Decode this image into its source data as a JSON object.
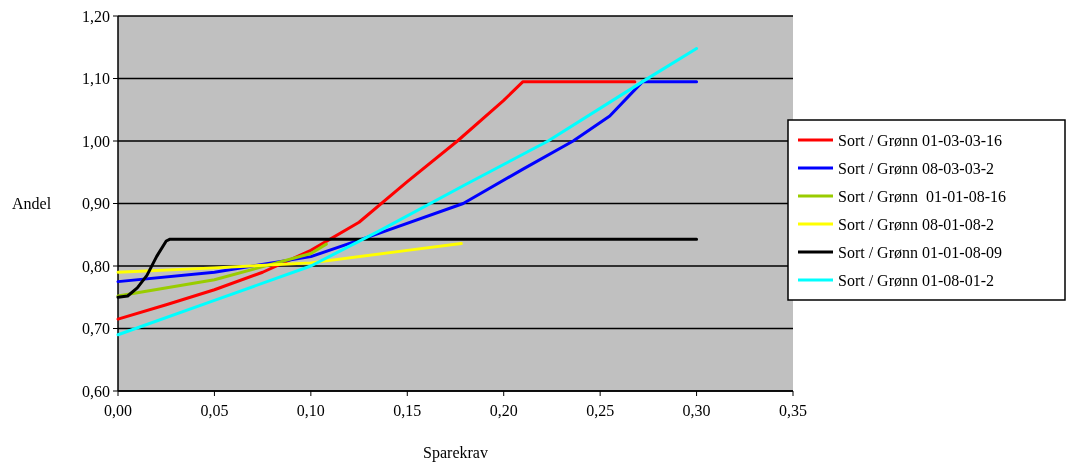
{
  "chart_data": {
    "type": "line",
    "xlabel": "Sparekrav",
    "ylabel": "Andel",
    "xlim": [
      0,
      0.35
    ],
    "ylim": [
      0.6,
      1.2
    ],
    "xticks": [
      {
        "value": 0,
        "label": "0,00"
      },
      {
        "value": 0.05,
        "label": "0,05"
      },
      {
        "value": 0.1,
        "label": "0,10"
      },
      {
        "value": 0.15,
        "label": "0,15"
      },
      {
        "value": 0.2,
        "label": "0,20"
      },
      {
        "value": 0.25,
        "label": "0,25"
      },
      {
        "value": 0.3,
        "label": "0,30"
      },
      {
        "value": 0.35,
        "label": "0,35"
      }
    ],
    "yticks": [
      {
        "value": 0.6,
        "label": "0,60"
      },
      {
        "value": 0.7,
        "label": "0,70"
      },
      {
        "value": 0.8,
        "label": "0,80"
      },
      {
        "value": 0.9,
        "label": "0,90"
      },
      {
        "value": 1.0,
        "label": "1,00"
      },
      {
        "value": 1.1,
        "label": "1,10"
      },
      {
        "value": 1.2,
        "label": "1,20"
      }
    ],
    "grid": "y",
    "legend": "right",
    "marker": "none",
    "line_style": "solid",
    "series": [
      {
        "name": "Sort / Grønn 01-03-03-16",
        "color": "#ff0000",
        "x": [
          0,
          0.025,
          0.05,
          0.075,
          0.1,
          0.125,
          0.15,
          0.176,
          0.2,
          0.21,
          0.268
        ],
        "values": [
          0.715,
          0.738,
          0.762,
          0.79,
          0.825,
          0.87,
          0.935,
          1.0,
          1.065,
          1.095,
          1.095
        ]
      },
      {
        "name": "Sort / Grønn 08-03-03-2",
        "color": "#0000ff",
        "x": [
          0,
          0.05,
          0.1,
          0.136,
          0.179,
          0.21,
          0.236,
          0.255,
          0.272,
          0.3
        ],
        "values": [
          0.775,
          0.79,
          0.815,
          0.853,
          0.9,
          0.955,
          1.0,
          1.04,
          1.095,
          1.095
        ]
      },
      {
        "name": "Sort / Grønn  01-01-08-16",
        "color": "#99cc00",
        "x": [
          0,
          0.05,
          0.1,
          0.108
        ],
        "values": [
          0.752,
          0.778,
          0.82,
          0.835
        ]
      },
      {
        "name": "Sort / Grønn 08-01-08-2",
        "color": "#ffff00",
        "x": [
          0,
          0.05,
          0.1,
          0.15,
          0.178
        ],
        "values": [
          0.79,
          0.797,
          0.805,
          0.825,
          0.836
        ]
      },
      {
        "name": "Sort / Grønn 01-01-08-09",
        "color": "#000000",
        "x": [
          0,
          0.005,
          0.01,
          0.015,
          0.02,
          0.025,
          0.027,
          0.3
        ],
        "values": [
          0.75,
          0.752,
          0.765,
          0.785,
          0.815,
          0.84,
          0.843,
          0.843
        ]
      },
      {
        "name": "Sort / Grønn 01-08-01-2",
        "color": "#00ffff",
        "x": [
          0,
          0.05,
          0.1,
          0.136,
          0.18,
          0.223,
          0.272,
          0.3
        ],
        "values": [
          0.69,
          0.745,
          0.8,
          0.857,
          0.93,
          1.0,
          1.095,
          1.148
        ]
      }
    ]
  }
}
